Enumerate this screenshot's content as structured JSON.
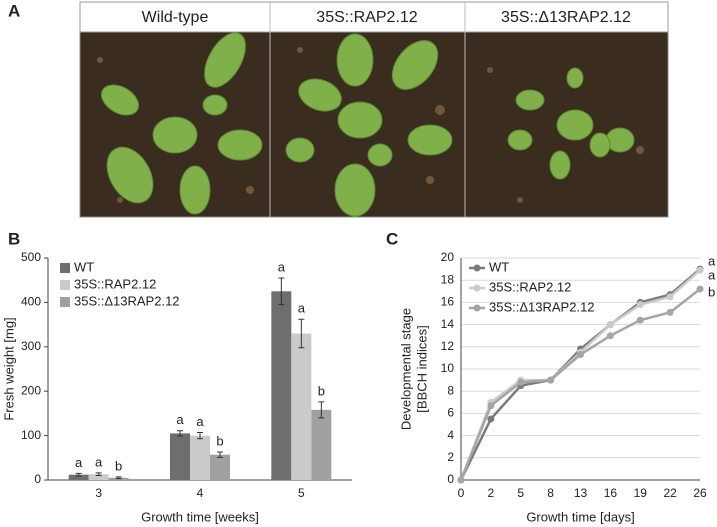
{
  "panel_labels": [
    "A",
    "B",
    "C"
  ],
  "photo_labels": [
    "Wild-type",
    "35S::RAP2.12",
    "35S::Δ13RAP2.12"
  ],
  "chart_data": [
    {
      "type": "bar",
      "xlabel": "Growth time [weeks]",
      "ylabel": "Fresh weight [mg]",
      "categories": [
        "3",
        "4",
        "5"
      ],
      "series": [
        {
          "name": "WT",
          "color": "#6e6e6e",
          "values": [
            12,
            105,
            425
          ],
          "errors": [
            3,
            6,
            30
          ],
          "letters": [
            "a",
            "a",
            "a"
          ]
        },
        {
          "name": "35S::RAP2.12",
          "color": "#cacaca",
          "values": [
            13,
            100,
            330
          ],
          "errors": [
            3,
            7,
            32
          ],
          "letters": [
            "a",
            "a",
            "a"
          ]
        },
        {
          "name": "35S::Δ13RAP2.12",
          "color": "#a0a0a0",
          "values": [
            5,
            57,
            158
          ],
          "errors": [
            2,
            6,
            18
          ],
          "letters": [
            "b",
            "b",
            "b"
          ]
        }
      ],
      "ylim": [
        0,
        500
      ],
      "yticks": [
        0,
        100,
        200,
        300,
        400,
        500
      ]
    },
    {
      "type": "line",
      "xlabel": "Growth time [days]",
      "ylabel": [
        "Developmental stage",
        "[BBCH indices]"
      ],
      "categories": [
        "0",
        "2",
        "5",
        "8",
        "13",
        "16",
        "19",
        "22",
        "26"
      ],
      "series": [
        {
          "name": "WT",
          "color": "#7a7a7a",
          "values": [
            0,
            5.5,
            8.5,
            9,
            11.8,
            14,
            16,
            16.7,
            19
          ],
          "end_label": "a"
        },
        {
          "name": "35S::RAP2.12",
          "color": "#cbcbcb",
          "values": [
            0,
            7,
            9,
            9,
            11.5,
            14,
            15.8,
            16.5,
            18.9
          ],
          "end_label": "a"
        },
        {
          "name": "35S::Δ13RAP2.12",
          "color": "#a5a5a5",
          "values": [
            0,
            6.7,
            8.8,
            9,
            11.3,
            13,
            14.4,
            15.1,
            17.2
          ],
          "end_label": "b"
        }
      ],
      "ylim": [
        0,
        20
      ],
      "yticks": [
        0,
        2,
        4,
        6,
        8,
        10,
        12,
        14,
        16,
        18,
        20
      ],
      "grid": true
    }
  ]
}
